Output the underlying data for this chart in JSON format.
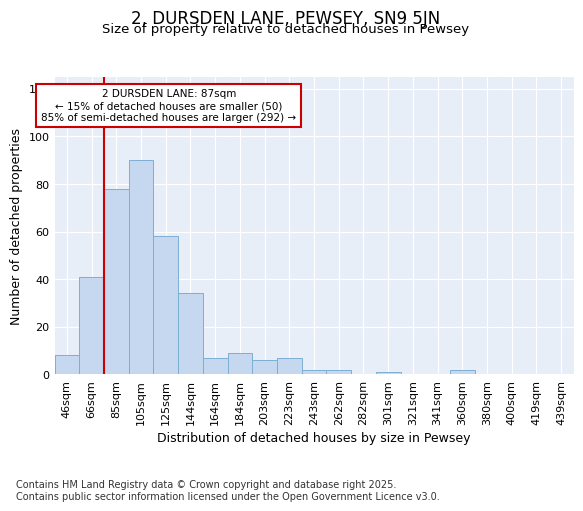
{
  "title": "2, DURSDEN LANE, PEWSEY, SN9 5JN",
  "subtitle": "Size of property relative to detached houses in Pewsey",
  "xlabel": "Distribution of detached houses by size in Pewsey",
  "ylabel": "Number of detached properties",
  "categories": [
    "46sqm",
    "66sqm",
    "85sqm",
    "105sqm",
    "125sqm",
    "144sqm",
    "164sqm",
    "184sqm",
    "203sqm",
    "223sqm",
    "243sqm",
    "262sqm",
    "282sqm",
    "301sqm",
    "321sqm",
    "341sqm",
    "360sqm",
    "380sqm",
    "400sqm",
    "419sqm",
    "439sqm"
  ],
  "values": [
    8,
    41,
    78,
    90,
    58,
    34,
    7,
    9,
    6,
    7,
    2,
    2,
    0,
    1,
    0,
    0,
    2,
    0,
    0,
    0,
    0
  ],
  "bar_color": "#c5d8f0",
  "bar_edge_color": "#7bafd4",
  "background_color": "#e8eef8",
  "grid_color": "#ffffff",
  "vline_x_index": 2,
  "vline_color": "#cc0000",
  "annotation_text": "2 DURSDEN LANE: 87sqm\n← 15% of detached houses are smaller (50)\n85% of semi-detached houses are larger (292) →",
  "annotation_box_color": "#cc0000",
  "ylim": [
    0,
    125
  ],
  "yticks": [
    0,
    20,
    40,
    60,
    80,
    100,
    120
  ],
  "footer_text": "Contains HM Land Registry data © Crown copyright and database right 2025.\nContains public sector information licensed under the Open Government Licence v3.0.",
  "title_fontsize": 12,
  "subtitle_fontsize": 9.5,
  "axis_label_fontsize": 9,
  "tick_fontsize": 8,
  "footer_fontsize": 7
}
